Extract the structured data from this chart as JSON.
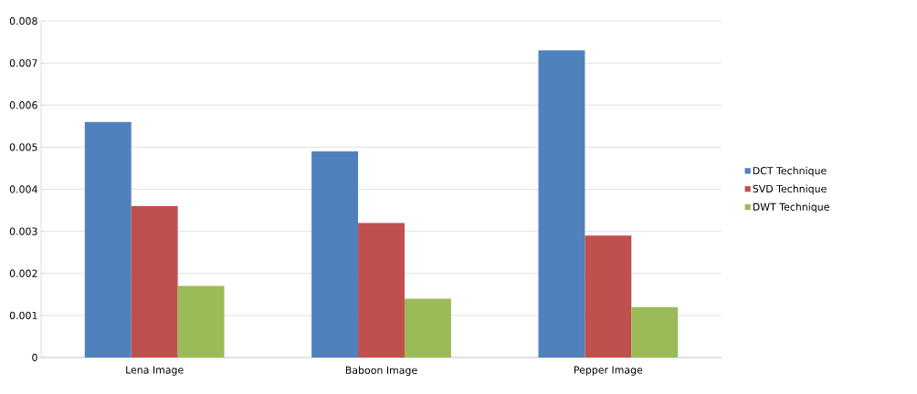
{
  "chart_data": {
    "type": "bar",
    "categories": [
      "Lena Image",
      "Baboon Image",
      "Pepper Image"
    ],
    "series": [
      {
        "name": "DCT Technique",
        "color": "#4f81bd",
        "values": [
          0.0056,
          0.0049,
          0.0073
        ]
      },
      {
        "name": "SVD Technique",
        "color": "#c0504d",
        "values": [
          0.0036,
          0.0032,
          0.0029
        ]
      },
      {
        "name": "DWT Technique",
        "color": "#9bbb59",
        "values": [
          0.0017,
          0.0014,
          0.0012
        ]
      }
    ],
    "ylim": [
      0,
      0.008
    ],
    "yticks": [
      0,
      0.001,
      0.002,
      0.003,
      0.004,
      0.005,
      0.006,
      0.007,
      0.008
    ],
    "grid": "y",
    "legend": "right"
  }
}
